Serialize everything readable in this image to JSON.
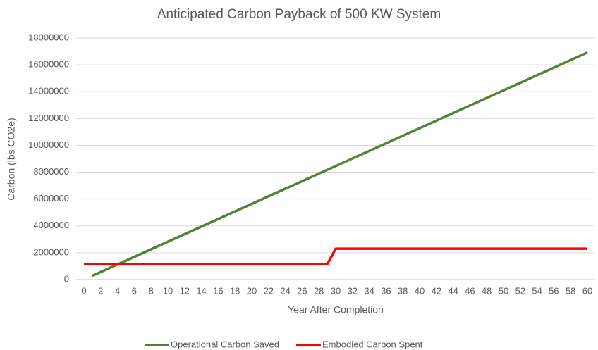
{
  "chart_data": {
    "type": "line",
    "title": "Anticipated Carbon Payback of 500 KW System",
    "x_label": "Year After Completion",
    "y_label": "Carbon (lbs CO2e)",
    "x": [
      0,
      1,
      2,
      3,
      4,
      5,
      6,
      7,
      8,
      9,
      10,
      11,
      12,
      13,
      14,
      15,
      16,
      17,
      18,
      19,
      20,
      21,
      22,
      23,
      24,
      25,
      26,
      27,
      28,
      29,
      30,
      31,
      32,
      33,
      34,
      35,
      36,
      37,
      38,
      39,
      40,
      41,
      42,
      43,
      44,
      45,
      46,
      47,
      48,
      49,
      50,
      51,
      52,
      53,
      54,
      55,
      56,
      57,
      58,
      59,
      60
    ],
    "series": [
      {
        "name": "Operational Carbon Saved",
        "color": "#548235",
        "values": [
          null,
          282000,
          564000,
          846000,
          1128000,
          1410000,
          1692000,
          1974000,
          2256000,
          2538000,
          2820000,
          3102000,
          3384000,
          3666000,
          3948000,
          4230000,
          4512000,
          4794000,
          5076000,
          5358000,
          5640000,
          5922000,
          6204000,
          6486000,
          6768000,
          7050000,
          7332000,
          7614000,
          7896000,
          8178000,
          8460000,
          8742000,
          9024000,
          9306000,
          9588000,
          9870000,
          10152000,
          10434000,
          10716000,
          10998000,
          11280000,
          11562000,
          11844000,
          12126000,
          12408000,
          12690000,
          12972000,
          13254000,
          13536000,
          13818000,
          14100000,
          14382000,
          14664000,
          14946000,
          15228000,
          15510000,
          15792000,
          16074000,
          16356000,
          16638000,
          16920000
        ]
      },
      {
        "name": "Embodied Carbon Spent",
        "color": "#ff0000",
        "values": [
          1150000,
          1150000,
          1150000,
          1150000,
          1150000,
          1150000,
          1150000,
          1150000,
          1150000,
          1150000,
          1150000,
          1150000,
          1150000,
          1150000,
          1150000,
          1150000,
          1150000,
          1150000,
          1150000,
          1150000,
          1150000,
          1150000,
          1150000,
          1150000,
          1150000,
          1150000,
          1150000,
          1150000,
          1150000,
          1150000,
          2300000,
          2300000,
          2300000,
          2300000,
          2300000,
          2300000,
          2300000,
          2300000,
          2300000,
          2300000,
          2300000,
          2300000,
          2300000,
          2300000,
          2300000,
          2300000,
          2300000,
          2300000,
          2300000,
          2300000,
          2300000,
          2300000,
          2300000,
          2300000,
          2300000,
          2300000,
          2300000,
          2300000,
          2300000,
          2300000,
          2300000
        ]
      }
    ],
    "xlim": [
      0,
      60
    ],
    "xticks": [
      0,
      2,
      4,
      6,
      8,
      10,
      12,
      14,
      16,
      18,
      20,
      22,
      24,
      26,
      28,
      30,
      32,
      34,
      36,
      38,
      40,
      42,
      44,
      46,
      48,
      50,
      52,
      54,
      56,
      58,
      60
    ],
    "ylim": [
      0,
      18000000
    ],
    "yticks": [
      0,
      2000000,
      4000000,
      6000000,
      8000000,
      10000000,
      12000000,
      14000000,
      16000000,
      18000000
    ],
    "grid": true,
    "legend": "bottom"
  }
}
